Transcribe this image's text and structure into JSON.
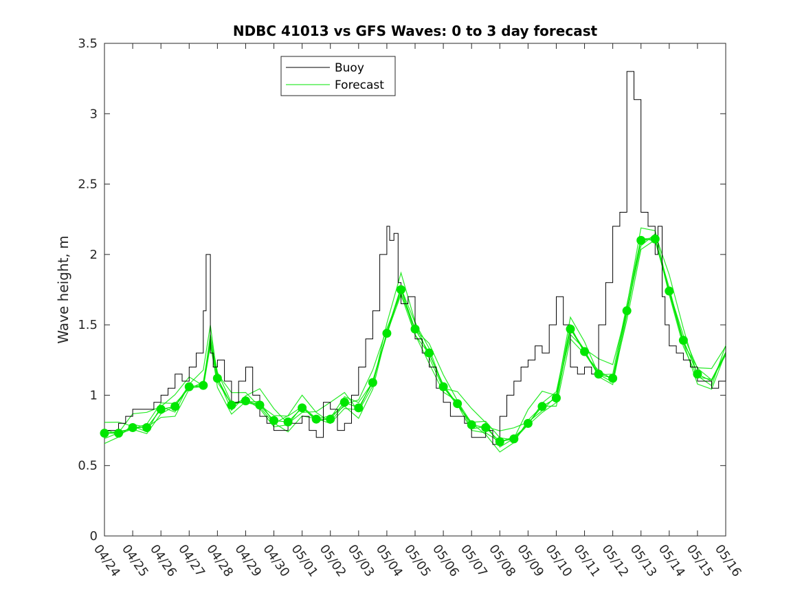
{
  "chart_data": {
    "type": "line",
    "title": "NDBC 41013 vs GFS Waves: 0 to 3 day forecast",
    "xlabel": "",
    "ylabel": "Wave height, m",
    "ylim": [
      0,
      3.5
    ],
    "yticks": [
      "0",
      "0.5",
      "1",
      "1.5",
      "2",
      "2.5",
      "3",
      "3.5"
    ],
    "xlim": [
      "04/24",
      "05/16"
    ],
    "xticks": [
      "04/24",
      "04/25",
      "04/26",
      "04/27",
      "04/28",
      "04/29",
      "04/30",
      "05/01",
      "05/02",
      "05/03",
      "05/04",
      "05/05",
      "05/06",
      "05/07",
      "05/08",
      "05/09",
      "05/10",
      "05/11",
      "05/12",
      "05/13",
      "05/14",
      "05/15",
      "05/16"
    ],
    "grid": false,
    "legend": {
      "position": "top-center",
      "entries": [
        "Buoy",
        "Forecast"
      ]
    },
    "colors": {
      "buoy": "#000000",
      "forecast": "#00e600"
    },
    "series": [
      {
        "name": "Buoy",
        "x_days": [
          0,
          0.25,
          0.5,
          0.75,
          1,
          1.25,
          1.5,
          1.75,
          2,
          2.25,
          2.5,
          2.75,
          3,
          3.25,
          3.5,
          3.6,
          3.75,
          3.85,
          4,
          4.25,
          4.5,
          4.75,
          5,
          5.25,
          5.5,
          5.75,
          6,
          6.25,
          6.5,
          6.75,
          7,
          7.25,
          7.5,
          7.75,
          8,
          8.25,
          8.5,
          8.75,
          9,
          9.25,
          9.5,
          9.75,
          10,
          10.1,
          10.25,
          10.4,
          10.5,
          10.75,
          11,
          11.25,
          11.5,
          11.75,
          12,
          12.25,
          12.5,
          12.75,
          13,
          13.25,
          13.5,
          13.75,
          14,
          14.25,
          14.5,
          14.75,
          15,
          15.25,
          15.5,
          15.75,
          16,
          16.25,
          16.5,
          16.75,
          17,
          17.25,
          17.5,
          17.75,
          18,
          18.25,
          18.5,
          18.75,
          19,
          19.25,
          19.5,
          19.6,
          19.75,
          19.85,
          20,
          20.25,
          20.5,
          20.75,
          21,
          21.25,
          21.5,
          21.75,
          22
        ],
        "y": [
          0.75,
          0.75,
          0.8,
          0.85,
          0.9,
          0.9,
          0.9,
          0.95,
          1.0,
          1.05,
          1.15,
          1.1,
          1.2,
          1.3,
          1.6,
          2.0,
          1.3,
          1.2,
          1.25,
          1.1,
          0.95,
          1.1,
          1.2,
          1.0,
          0.85,
          0.8,
          0.75,
          0.75,
          0.8,
          0.8,
          0.85,
          0.75,
          0.7,
          0.95,
          0.9,
          0.75,
          0.8,
          1.0,
          1.2,
          1.4,
          1.6,
          2.0,
          2.2,
          2.1,
          2.15,
          1.8,
          1.65,
          1.7,
          1.4,
          1.3,
          1.2,
          1.05,
          0.95,
          0.85,
          0.85,
          0.8,
          0.7,
          0.7,
          0.75,
          0.65,
          0.85,
          1.0,
          1.1,
          1.2,
          1.25,
          1.35,
          1.3,
          1.5,
          1.7,
          1.5,
          1.2,
          1.15,
          1.2,
          1.15,
          1.5,
          1.8,
          2.2,
          2.3,
          3.3,
          3.1,
          2.3,
          2.2,
          2.0,
          2.2,
          1.7,
          1.5,
          1.35,
          1.3,
          1.25,
          1.2,
          1.1,
          1.1,
          1.05,
          1.1,
          1.35
        ]
      },
      {
        "name": "Forecast",
        "x_days": [
          0,
          0.5,
          1,
          1.5,
          2,
          2.5,
          3,
          3.5,
          3.75,
          4,
          4.5,
          5,
          5.5,
          6,
          6.5,
          7,
          7.5,
          8,
          8.5,
          9,
          9.5,
          10,
          10.5,
          11,
          11.5,
          12,
          12.5,
          13,
          13.5,
          14,
          14.5,
          15,
          15.5,
          16,
          16.5,
          17,
          17.5,
          18,
          18.5,
          19,
          19.5,
          20,
          20.5,
          21,
          21.5,
          22
        ],
        "y": [
          0.73,
          0.73,
          0.77,
          0.77,
          0.9,
          0.92,
          1.06,
          1.07,
          1.4,
          1.12,
          0.93,
          0.96,
          0.93,
          0.82,
          0.81,
          0.91,
          0.83,
          0.83,
          0.95,
          0.91,
          1.09,
          1.44,
          1.75,
          1.47,
          1.3,
          1.06,
          0.94,
          0.79,
          0.77,
          0.67,
          0.69,
          0.8,
          0.92,
          0.98,
          1.47,
          1.31,
          1.15,
          1.12,
          1.6,
          2.1,
          2.11,
          1.74,
          1.39,
          1.15,
          1.1,
          1.3
        ]
      }
    ],
    "markers": {
      "name": "Forecast",
      "x_days": [
        0,
        0.5,
        1,
        1.5,
        2,
        2.5,
        3,
        3.5,
        4,
        4.5,
        5,
        5.5,
        6,
        6.5,
        7,
        7.5,
        8,
        8.5,
        9,
        9.5,
        10,
        10.5,
        11,
        11.5,
        12,
        12.5,
        13,
        13.5,
        14,
        14.5,
        15,
        15.5,
        16,
        16.5,
        17,
        17.5,
        18,
        18.5,
        19,
        19.5,
        20,
        20.5,
        21
      ],
      "y": [
        0.73,
        0.73,
        0.77,
        0.77,
        0.9,
        0.92,
        1.06,
        1.07,
        1.12,
        0.93,
        0.96,
        0.93,
        0.82,
        0.81,
        0.91,
        0.83,
        0.83,
        0.95,
        0.91,
        1.09,
        1.44,
        1.75,
        1.47,
        1.3,
        1.06,
        0.94,
        0.79,
        0.77,
        0.67,
        0.69,
        0.8,
        0.92,
        0.98,
        1.47,
        1.31,
        1.15,
        1.12,
        1.6,
        2.1,
        2.11,
        1.74,
        1.39,
        1.15
      ]
    }
  }
}
